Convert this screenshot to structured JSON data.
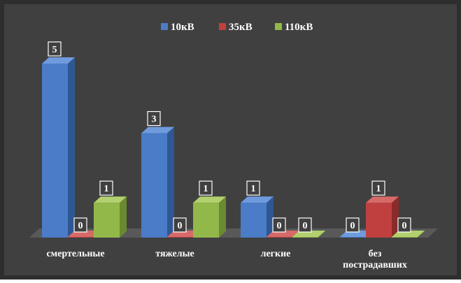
{
  "chart_data": {
    "type": "bar",
    "categories": [
      "смертельные",
      "тяжелые",
      "легкие",
      "без пострадавших"
    ],
    "category_lines": [
      [
        "смертельные"
      ],
      [
        "тяжелые"
      ],
      [
        "легкие"
      ],
      [
        "без",
        "пострадавших"
      ]
    ],
    "series": [
      {
        "name": "10кВ",
        "values": [
          5,
          3,
          1,
          0
        ]
      },
      {
        "name": "35кВ",
        "values": [
          0,
          0,
          0,
          1
        ]
      },
      {
        "name": "110кВ",
        "values": [
          1,
          1,
          0,
          0
        ]
      }
    ],
    "title": "",
    "xlabel": "",
    "ylabel": "",
    "ylim": [
      0,
      5
    ],
    "grid": false,
    "legend_position": "top-center",
    "data_labels": true,
    "style": "3d-column"
  },
  "colors": {
    "background": "#404040",
    "border": "#2e2e2e",
    "floor": "#595959",
    "text": "#ffffff",
    "series": [
      {
        "front": "#4a7cc8",
        "top": "#6f9bde",
        "side": "#2f5793"
      },
      {
        "front": "#c0403f",
        "top": "#d66a69",
        "side": "#8a2b2a"
      },
      {
        "front": "#93b84a",
        "top": "#b2d06e",
        "side": "#6a8a2f"
      }
    ]
  }
}
